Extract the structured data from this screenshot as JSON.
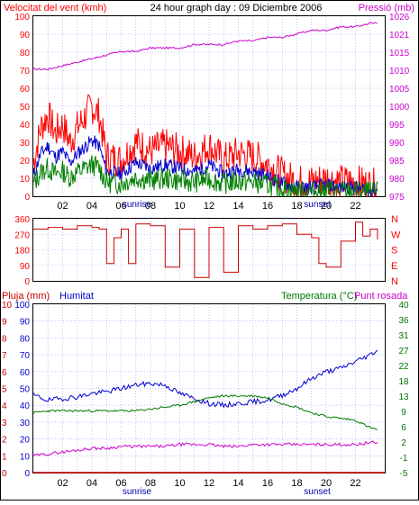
{
  "colors": {
    "background": "#ffffff",
    "frame": "#000000",
    "grid": "#9999ff",
    "wind_max": "#ff0000",
    "wind_avg": "#0000cc",
    "wind_min": "#008000",
    "pressure": "#cc00cc",
    "direction": "#cc0000",
    "humidity": "#0000cc",
    "temperature": "#007700",
    "dewpoint": "#cc00cc",
    "rain": "#cc0000"
  },
  "panel1": {
    "title_left": "Velocitat del vent (kmh)",
    "title_center": "24 hour graph day : 09 Diciembre 2006",
    "title_right": "Pressió (mb)",
    "y_left_ticks": [
      "0",
      "10",
      "20",
      "30",
      "40",
      "50",
      "60",
      "70",
      "80",
      "90",
      "100"
    ],
    "y_right_ticks": [
      "975",
      "980",
      "985",
      "990",
      "995",
      "1000",
      "1005",
      "1010",
      "1015",
      "1021",
      "1026"
    ],
    "x_ticks": [
      "02",
      "04",
      "06",
      "08",
      "10",
      "12",
      "14",
      "16",
      "18",
      "20",
      "22"
    ],
    "sunrise": "sunrise",
    "sunset": "sunset"
  },
  "panel2": {
    "y_left_ticks": [
      "0",
      "90",
      "180",
      "270",
      "360"
    ],
    "compass": [
      "N",
      "W",
      "S",
      "E",
      "N"
    ]
  },
  "panel3": {
    "title_left_rain": "Pluja (mm)",
    "title_left_hum": "Humitat",
    "title_right_temp": "Temperatura (°C)",
    "title_right_dew": "Punt rosada",
    "y_left_ticks": [
      "0",
      "10",
      "20",
      "30",
      "40",
      "50",
      "60",
      "70",
      "80",
      "90",
      "100"
    ],
    "y_left_ticks_rain": [
      "0",
      "1",
      "2",
      "3",
      "4",
      "5",
      "6",
      "7",
      "8",
      "9",
      "10"
    ],
    "y_right_ticks": [
      "-5",
      "-1",
      "2",
      "6",
      "9",
      "13",
      "18",
      "22",
      "27",
      "31",
      "36",
      "40"
    ],
    "x_ticks": [
      "02",
      "04",
      "06",
      "08",
      "10",
      "12",
      "14",
      "16",
      "18",
      "20",
      "22"
    ],
    "sunrise": "sunrise",
    "sunset": "sunset"
  },
  "chart_data": [
    {
      "type": "line",
      "title": "24 hour graph day : 09 Diciembre 2006",
      "ylabel": "Velocitat del vent (kmh)",
      "y2label": "Pressió (mb)",
      "xlim": [
        0,
        24
      ],
      "ylim": [
        0,
        100
      ],
      "y2lim": [
        975,
        1026
      ],
      "grid": true,
      "series": [
        {
          "name": "Velocitat del vent (kmh)",
          "x": [
            0,
            0.5,
            1,
            1.5,
            2,
            2.5,
            3,
            3.5,
            4,
            4.5,
            5,
            6,
            7,
            8,
            9,
            10,
            11,
            12,
            13,
            14,
            15,
            16,
            17,
            18,
            19,
            20,
            21,
            22,
            23,
            23.5
          ],
          "values": [
            18,
            38,
            45,
            35,
            40,
            30,
            38,
            44,
            50,
            45,
            22,
            20,
            30,
            25,
            28,
            25,
            22,
            28,
            20,
            24,
            22,
            18,
            12,
            8,
            8,
            10,
            8,
            8,
            6,
            6
          ]
        },
        {
          "name": "Pressió (mb)",
          "x": [
            0,
            1,
            2,
            3,
            4,
            5,
            6,
            7,
            8,
            9,
            10,
            11,
            12,
            13,
            14,
            15,
            16,
            17,
            18,
            19,
            20,
            21,
            22,
            23,
            23.5
          ],
          "values": [
            1011,
            1011,
            1012,
            1013,
            1014,
            1015,
            1016,
            1016,
            1017,
            1017,
            1017,
            1018,
            1018,
            1018,
            1019,
            1019,
            1020,
            1020,
            1021,
            1022,
            1022,
            1023,
            1023,
            1024,
            1024
          ]
        }
      ]
    },
    {
      "type": "line",
      "ylabel": "Wind direction",
      "xlim": [
        0,
        24
      ],
      "ylim": [
        0,
        360
      ],
      "grid": true,
      "series": [
        {
          "name": "Direction",
          "x": [
            0,
            1,
            2,
            3,
            4,
            4.5,
            5,
            5.5,
            6,
            6.5,
            7,
            8,
            9,
            10,
            11,
            12,
            13,
            14,
            15,
            16,
            17,
            18,
            19,
            19.5,
            20,
            21,
            22,
            22.5,
            23,
            23.5
          ],
          "values": [
            300,
            310,
            300,
            320,
            310,
            300,
            100,
            250,
            300,
            100,
            330,
            320,
            80,
            300,
            20,
            310,
            50,
            320,
            300,
            320,
            330,
            270,
            250,
            100,
            80,
            230,
            340,
            260,
            300,
            240
          ]
        }
      ]
    },
    {
      "type": "line",
      "ylabel": "Humitat",
      "y2label": "Temperatura (°C)",
      "xlim": [
        0,
        24
      ],
      "ylim": [
        0,
        100
      ],
      "y2lim": [
        -5,
        40
      ],
      "grid": true,
      "series": [
        {
          "name": "Humitat",
          "x": [
            0,
            1,
            2,
            3,
            4,
            5,
            6,
            7,
            8,
            9,
            10,
            11,
            12,
            13,
            14,
            15,
            16,
            17,
            18,
            19,
            20,
            21,
            22,
            23,
            23.5
          ],
          "values": [
            46,
            43,
            44,
            45,
            47,
            48,
            50,
            52,
            53,
            52,
            47,
            44,
            41,
            40,
            41,
            42,
            43,
            46,
            50,
            56,
            60,
            62,
            66,
            70,
            73
          ]
        },
        {
          "name": "Temperatura (°C)",
          "x": [
            0,
            1,
            2,
            3,
            4,
            5,
            6,
            7,
            8,
            9,
            10,
            11,
            12,
            13,
            14,
            15,
            16,
            17,
            18,
            19,
            20,
            21,
            22,
            23,
            23.5
          ],
          "values": [
            11,
            11.5,
            11.5,
            11.5,
            11.5,
            11.5,
            11.5,
            11.5,
            12,
            12.5,
            13,
            14,
            15,
            15.5,
            15.5,
            15.5,
            15,
            13.5,
            12.5,
            11,
            10,
            9.5,
            9,
            7,
            6.5
          ]
        },
        {
          "name": "Punt rosada",
          "x": [
            0,
            1,
            2,
            3,
            4,
            5,
            6,
            7,
            8,
            9,
            10,
            11,
            12,
            13,
            14,
            15,
            16,
            17,
            18,
            19,
            20,
            21,
            22,
            23,
            23.5
          ],
          "values": [
            -0.5,
            0,
            0.5,
            1,
            1.5,
            1.5,
            2,
            2,
            2,
            2,
            2.5,
            2.5,
            2.5,
            2,
            2,
            2.5,
            2.5,
            2.5,
            2.5,
            2.5,
            2.5,
            2.5,
            2.5,
            3,
            3
          ]
        },
        {
          "name": "Pluja (mm)",
          "x": [
            0,
            24
          ],
          "values": [
            0,
            0
          ]
        }
      ]
    }
  ]
}
